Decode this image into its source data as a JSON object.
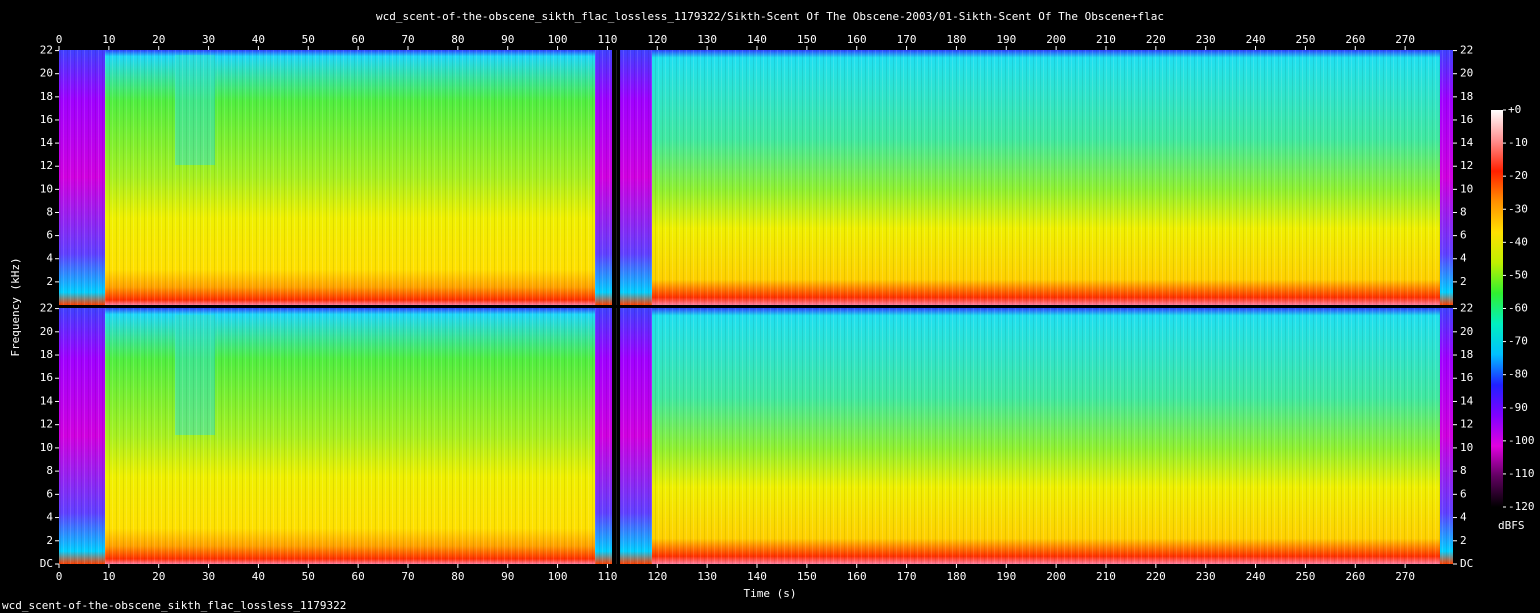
{
  "chart_data": {
    "type": "spectrogram",
    "title": "wcd_scent-of-the-obscene_sikth_flac_lossless_1179322/Sikth-Scent Of The Obscene-2003/01-Sikth-Scent Of The Obscene+flac",
    "xlabel": "Time (s)",
    "ylabel": "Frequency (kHz)",
    "footer": "wcd_scent-of-the-obscene_sikth_flac_lossless_1179322",
    "xlim": [
      0,
      279.6
    ],
    "xticks": [
      0,
      10,
      20,
      30,
      40,
      50,
      60,
      70,
      80,
      90,
      100,
      110,
      120,
      130,
      140,
      150,
      160,
      170,
      180,
      190,
      200,
      210,
      220,
      230,
      240,
      250,
      260,
      270
    ],
    "channels": [
      {
        "ylim": [
          0,
          22.05
        ],
        "yticks": [
          2,
          4,
          6,
          8,
          10,
          12,
          14,
          16,
          18,
          20,
          22
        ]
      },
      {
        "ylim": [
          0,
          22.05
        ],
        "yticks": [
          {
            "value": 0,
            "label": "DC"
          },
          2,
          4,
          6,
          8,
          10,
          12,
          14,
          16,
          18,
          20,
          22
        ]
      }
    ],
    "colorbar": {
      "label": "dBFS",
      "lim": [
        -120,
        0
      ],
      "ticks": [
        {
          "value": 0,
          "label": "+0"
        },
        -10,
        -20,
        -30,
        -40,
        -50,
        -60,
        -70,
        -80,
        -90,
        -100,
        -110,
        -120
      ],
      "colors": [
        "#ffffff",
        "#ff9090",
        "#ff2000",
        "#ff9000",
        "#ffe000",
        "#c0f000",
        "#30f030",
        "#00f0c0",
        "#00c0ff",
        "#2020ff",
        "#8000ff",
        "#e000e0",
        "#600060",
        "#000000"
      ]
    }
  }
}
